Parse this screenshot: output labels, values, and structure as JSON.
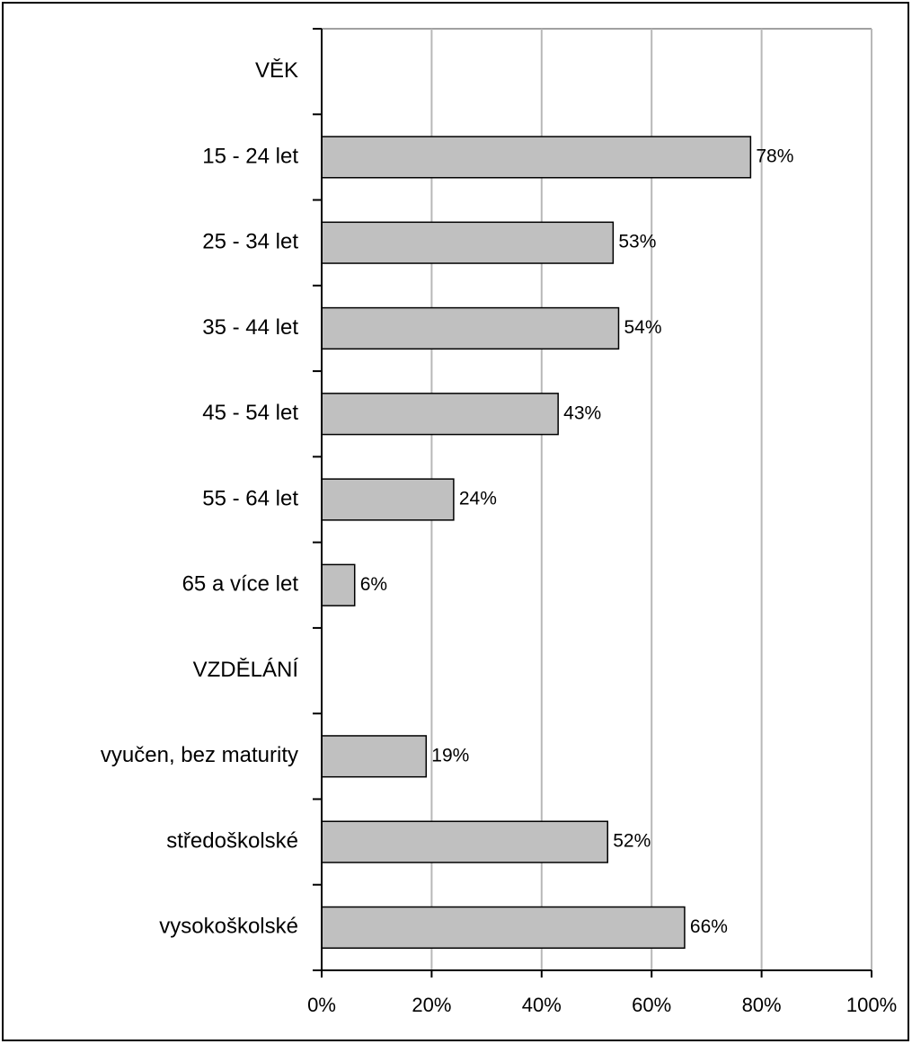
{
  "chart_data": {
    "type": "barh",
    "categories": [
      "VĚK",
      "15 - 24 let",
      "25 - 34 let",
      "35 - 44 let",
      "45 - 54 let",
      "55 - 64 let",
      "65 a více let",
      "VZDĚLÁNÍ",
      "vyučen, bez maturity",
      "středoškolské",
      "vysokoškolské"
    ],
    "values": [
      null,
      78,
      53,
      54,
      43,
      24,
      6,
      null,
      19,
      52,
      66
    ],
    "value_labels": [
      null,
      "78%",
      "53%",
      "54%",
      "43%",
      "24%",
      "6%",
      null,
      "19%",
      "52%",
      "66%"
    ],
    "color": "#c0c0c0",
    "xlim": [
      0,
      100
    ],
    "xticks": [
      {
        "value": 0,
        "label": "0%"
      },
      {
        "value": 20,
        "label": "20%"
      },
      {
        "value": 40,
        "label": "40%"
      },
      {
        "value": 60,
        "label": "60%"
      },
      {
        "value": 80,
        "label": "80%"
      },
      {
        "value": 100,
        "label": "100%"
      }
    ],
    "grid": true
  }
}
